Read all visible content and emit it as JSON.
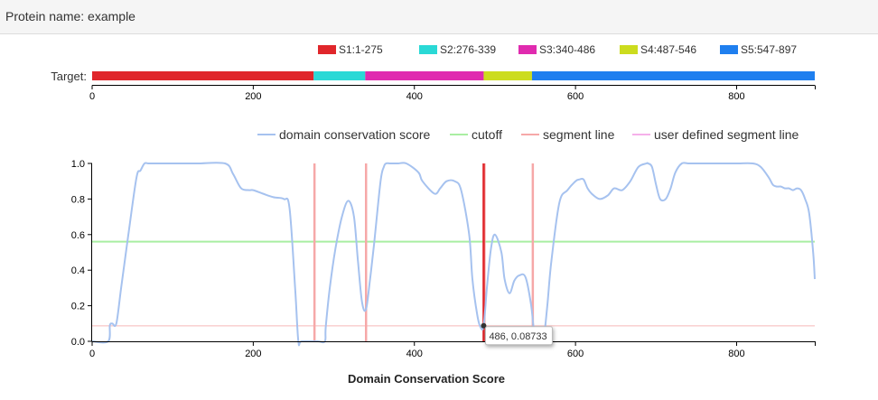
{
  "header": {
    "title": "Protein name: example"
  },
  "target": {
    "label": "Target:",
    "segments": [
      {
        "name": "S1:1-275",
        "start": 1,
        "end": 275,
        "color": "#e0262b"
      },
      {
        "name": "S2:276-339",
        "start": 276,
        "end": 339,
        "color": "#2ad9d6"
      },
      {
        "name": "S3:340-486",
        "start": 340,
        "end": 486,
        "color": "#e02baf"
      },
      {
        "name": "S4:487-546",
        "start": 487,
        "end": 546,
        "color": "#ccdc1e"
      },
      {
        "name": "S5:547-897",
        "start": 547,
        "end": 897,
        "color": "#1f7fef"
      }
    ],
    "xlim": [
      0,
      897
    ],
    "ticks": [
      0,
      200,
      400,
      600,
      800
    ]
  },
  "chart_data": {
    "type": "line",
    "xlabel": "Domain Conservation Score",
    "ylabel": "",
    "xlim": [
      0,
      897
    ],
    "ylim": [
      0,
      1
    ],
    "xticks": [
      0,
      200,
      400,
      600,
      800
    ],
    "yticks": [
      "0.0",
      "0.2",
      "0.4",
      "0.6",
      "0.8",
      "1.0"
    ],
    "legend_position": "top-right",
    "legend": [
      {
        "label": "domain conservation score",
        "color": "#a6c2ef"
      },
      {
        "label": "cutoff",
        "color": "#a9eea2"
      },
      {
        "label": "segment line",
        "color": "#f6a8a8"
      },
      {
        "label": "user defined segment line",
        "color": "#f5b0ea"
      }
    ],
    "series": [
      {
        "name": "domain conservation score",
        "color": "#a6c2ef",
        "x": [
          0,
          20,
          22,
          25,
          30,
          36,
          45,
          55,
          60,
          65,
          70,
          80,
          100,
          130,
          165,
          175,
          185,
          195,
          200,
          212,
          225,
          238,
          245,
          252,
          256,
          260,
          280,
          289,
          290,
          295,
          302,
          310,
          318,
          325,
          330,
          335,
          340,
          345,
          350,
          358,
          362,
          365,
          370,
          375,
          380,
          390,
          405,
          410,
          425,
          432,
          440,
          450,
          458,
          468,
          472,
          478,
          482,
          486,
          490,
          495,
          500,
          508,
          512,
          518,
          524,
          530,
          538,
          545,
          550,
          555,
          560,
          565,
          570,
          580,
          590,
          600,
          605,
          610,
          615,
          620,
          630,
          640,
          648,
          658,
          668,
          678,
          688,
          690,
          695,
          700,
          705,
          712,
          718,
          724,
          732,
          740,
          750,
          760,
          780,
          800,
          820,
          830,
          840,
          845,
          850,
          855,
          860,
          865,
          870,
          875,
          880,
          885,
          890,
          895,
          897
        ],
        "y": [
          0.0,
          0.0,
          0.09,
          0.1,
          0.1,
          0.3,
          0.6,
          0.92,
          0.96,
          1.0,
          1.0,
          1.0,
          1.0,
          1.0,
          1.0,
          0.94,
          0.86,
          0.85,
          0.85,
          0.83,
          0.81,
          0.8,
          0.75,
          0.3,
          0.0,
          0.0,
          0.0,
          0.0,
          0.08,
          0.3,
          0.52,
          0.7,
          0.79,
          0.7,
          0.45,
          0.22,
          0.18,
          0.35,
          0.55,
          0.9,
          0.98,
          1.0,
          1.0,
          1.0,
          1.0,
          1.0,
          0.95,
          0.9,
          0.83,
          0.86,
          0.9,
          0.9,
          0.85,
          0.6,
          0.35,
          0.15,
          0.08,
          0.087,
          0.3,
          0.52,
          0.6,
          0.5,
          0.35,
          0.27,
          0.34,
          0.37,
          0.36,
          0.2,
          0.0,
          0.0,
          0.0,
          0.2,
          0.45,
          0.78,
          0.85,
          0.9,
          0.91,
          0.91,
          0.86,
          0.83,
          0.8,
          0.82,
          0.86,
          0.85,
          0.9,
          0.98,
          1.0,
          1.0,
          0.98,
          0.88,
          0.8,
          0.8,
          0.86,
          0.95,
          1.0,
          1.0,
          1.0,
          1.0,
          1.0,
          1.0,
          1.0,
          0.98,
          0.92,
          0.88,
          0.87,
          0.87,
          0.86,
          0.86,
          0.85,
          0.86,
          0.85,
          0.8,
          0.72,
          0.5,
          0.35
        ]
      }
    ],
    "cutoff": {
      "label": "cutoff",
      "value": 0.56,
      "color": "#a9eea2"
    },
    "threshold_line": {
      "value": 0.087,
      "color": "#f6b8b8"
    },
    "segment_lines": {
      "label": "segment line",
      "x": [
        276,
        340,
        487,
        547
      ],
      "color": "#f6a8a8"
    },
    "selected_segment_line": {
      "x": 486,
      "color": "#e0262b"
    },
    "tooltip": {
      "x": 486,
      "y": 0.08733,
      "text": "486, 0.08733"
    }
  }
}
